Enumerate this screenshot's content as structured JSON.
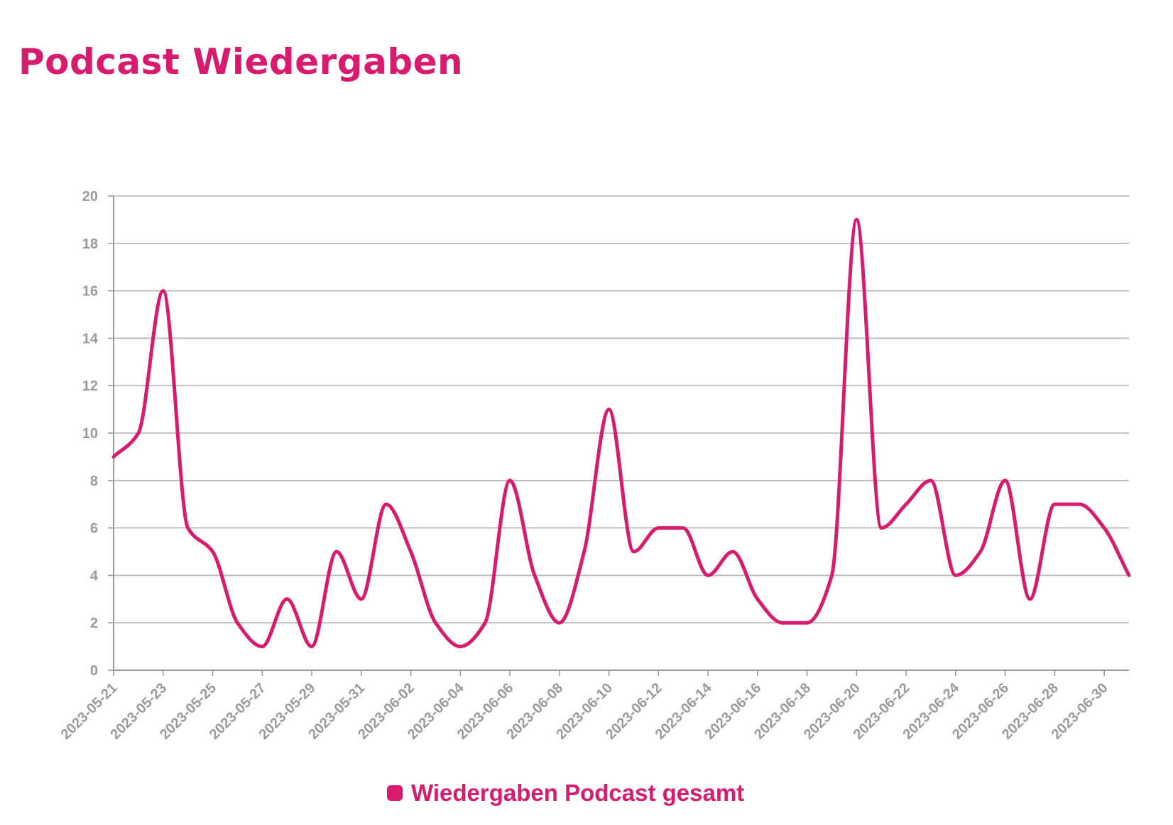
{
  "title": "Podcast Wiedergaben",
  "legend": {
    "label": "Wiedergaben Podcast gesamt"
  },
  "colors": {
    "accent": "#d81b6f",
    "grid": "#b3b3b3",
    "axis": "#999999",
    "tick_text": "#9a9a9a"
  },
  "chart_data": {
    "type": "line",
    "title": "Podcast Wiedergaben",
    "xlabel": "",
    "ylabel": "",
    "ylim": [
      0,
      20
    ],
    "yticks": [
      0,
      2,
      4,
      6,
      8,
      10,
      12,
      14,
      16,
      18,
      20
    ],
    "xtick_labels": [
      "2023-05-21",
      "2023-05-23",
      "2023-05-25",
      "2023-05-27",
      "2023-05-29",
      "2023-05-31",
      "2023-06-02",
      "2023-06-04",
      "2023-06-06",
      "2023-06-08",
      "2023-06-10",
      "2023-06-12",
      "2023-06-14",
      "2023-06-16",
      "2023-06-18",
      "2023-06-20",
      "2023-06-22",
      "2023-06-24",
      "2023-06-26",
      "2023-06-28",
      "2023-06-30"
    ],
    "grid": true,
    "legend_position": "bottom",
    "x": [
      "2023-05-21",
      "2023-05-22",
      "2023-05-23",
      "2023-05-24",
      "2023-05-25",
      "2023-05-26",
      "2023-05-27",
      "2023-05-28",
      "2023-05-29",
      "2023-05-30",
      "2023-05-31",
      "2023-06-01",
      "2023-06-02",
      "2023-06-03",
      "2023-06-04",
      "2023-06-05",
      "2023-06-06",
      "2023-06-07",
      "2023-06-08",
      "2023-06-09",
      "2023-06-10",
      "2023-06-11",
      "2023-06-12",
      "2023-06-13",
      "2023-06-14",
      "2023-06-15",
      "2023-06-16",
      "2023-06-17",
      "2023-06-18",
      "2023-06-19",
      "2023-06-20",
      "2023-06-21",
      "2023-06-22",
      "2023-06-23",
      "2023-06-24",
      "2023-06-25",
      "2023-06-26",
      "2023-06-27",
      "2023-06-28",
      "2023-06-29",
      "2023-06-30",
      "2023-07-01"
    ],
    "series": [
      {
        "name": "Wiedergaben Podcast gesamt",
        "values": [
          9,
          10,
          16,
          6,
          5,
          2,
          1,
          3,
          1,
          5,
          3,
          7,
          5,
          2,
          1,
          2,
          8,
          4,
          2,
          5,
          11,
          5,
          6,
          6,
          4,
          5,
          3,
          2,
          2,
          4,
          19,
          6,
          7,
          8,
          4,
          5,
          8,
          3,
          7,
          7,
          6,
          4
        ]
      }
    ]
  }
}
